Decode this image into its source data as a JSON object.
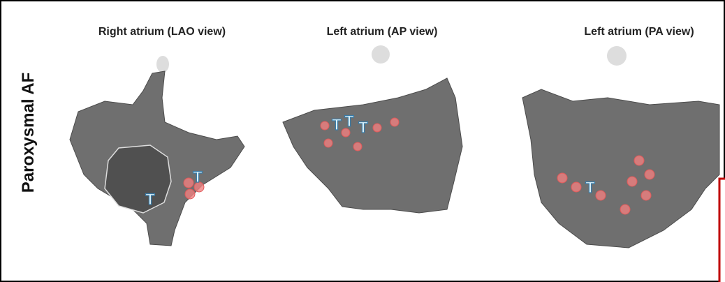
{
  "row_label": "Paroxysmal AF",
  "maps": [
    {
      "title": "Right atrium (LAO view)",
      "tags": [
        "T",
        "T"
      ]
    },
    {
      "title": "Left atrium (AP view)",
      "tags": [
        "T",
        "T",
        "T"
      ]
    },
    {
      "title": "Left atrium (PA view)",
      "tags": [
        "T"
      ]
    }
  ]
}
